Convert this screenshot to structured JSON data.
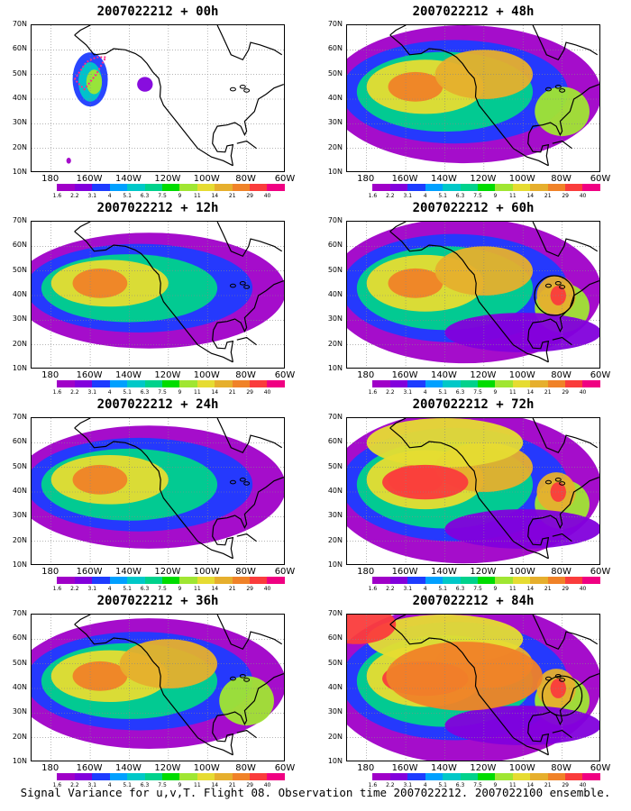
{
  "panels": [
    {
      "title": "2007022212 + 00h",
      "level": 0
    },
    {
      "title": "2007022212 + 48h",
      "level": 4
    },
    {
      "title": "2007022212 + 12h",
      "level": 1
    },
    {
      "title": "2007022212 + 60h",
      "level": 5
    },
    {
      "title": "2007022212 + 24h",
      "level": 2
    },
    {
      "title": "2007022212 + 72h",
      "level": 6
    },
    {
      "title": "2007022212 + 36h",
      "level": 3
    },
    {
      "title": "2007022212 + 84h",
      "level": 7
    }
  ],
  "lat_labels": [
    "70N",
    "60N",
    "50N",
    "40N",
    "30N",
    "20N",
    "10N"
  ],
  "lon_labels": [
    "180",
    "160W",
    "140W",
    "120W",
    "100W",
    "80W",
    "60W"
  ],
  "colorbar": {
    "labels": [
      "1.6",
      "2.2",
      "3.1",
      "4",
      "5.1",
      "6.3",
      "7.5",
      "9",
      "11",
      "14",
      "21",
      "29",
      "40"
    ],
    "colors": [
      "#ffffff",
      "#a000c8",
      "#8200dc",
      "#1e3cff",
      "#00a0ff",
      "#00c8c8",
      "#00d28c",
      "#00dc00",
      "#a0e632",
      "#e6dc32",
      "#e6af2d",
      "#f08228",
      "#fa3c3c",
      "#f00082"
    ]
  },
  "caption": "Signal Variance for u,v,T. Flight 08. Observation time 2007022212. 2007022100 ensemble."
}
